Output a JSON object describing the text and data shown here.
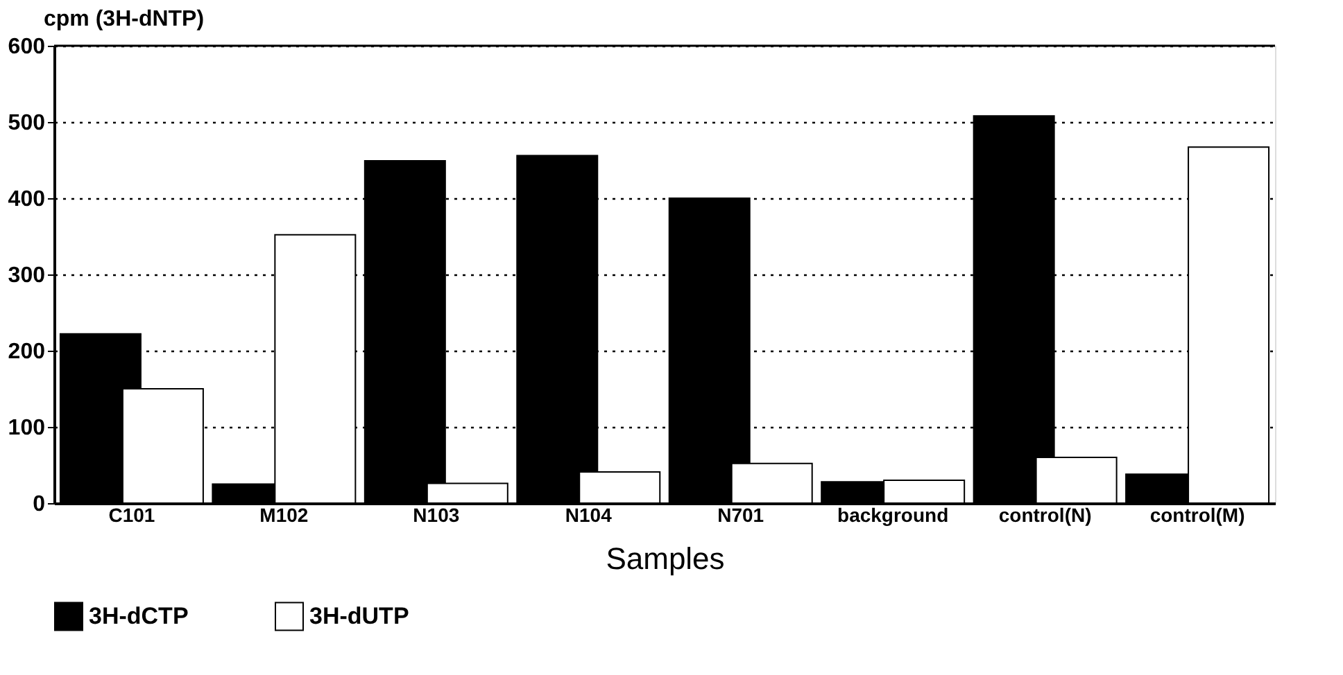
{
  "chart_data": {
    "type": "bar",
    "xlabel": "Samples",
    "ylabel": "cpm (3H-dNTP)",
    "categories": [
      "C101",
      "M102",
      "N103",
      "N104",
      "N701",
      "background",
      "control(N)",
      "control(M)"
    ],
    "series": [
      {
        "name": "3H-dCTP",
        "color": "#000000",
        "values": [
          222,
          25,
          449,
          456,
          400,
          28,
          508,
          38
        ]
      },
      {
        "name": "3H-dUTP",
        "color": "#ffffff",
        "values": [
          150,
          352,
          26,
          41,
          52,
          30,
          60,
          467
        ]
      }
    ],
    "ylim": [
      0,
      600
    ],
    "yticks": [
      0,
      100,
      200,
      300,
      400,
      500,
      600
    ],
    "grid": "y",
    "legend": "bottom"
  }
}
